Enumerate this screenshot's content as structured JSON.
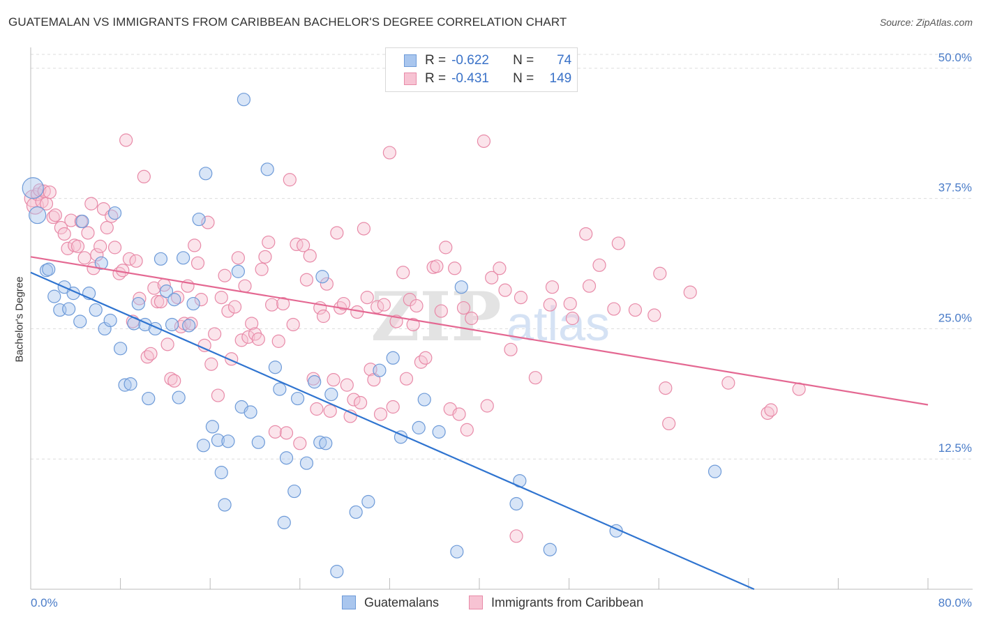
{
  "header": {
    "title": "GUATEMALAN VS IMMIGRANTS FROM CARIBBEAN BACHELOR'S DEGREE CORRELATION CHART",
    "source": "Source: ZipAtlas.com"
  },
  "legend": {
    "r_label": "R =",
    "n_label": "N =",
    "rows": [
      {
        "r": "-0.622",
        "n": "74"
      },
      {
        "r": "-0.431",
        "n": "149"
      }
    ]
  },
  "watermark": {
    "part1": "ZIP",
    "part2": "atlas"
  },
  "colors": {
    "blue_fill": "#a9c6ee",
    "blue_stroke": "#6d9ad8",
    "blue_line": "#2f74d0",
    "pink_fill": "#f7c3d3",
    "pink_stroke": "#e88aa8",
    "pink_line": "#e46892",
    "tick_text": "#4a7cc8"
  },
  "chart_data": {
    "type": "scatter",
    "title": "GUATEMALAN VS IMMIGRANTS FROM CARIBBEAN BACHELOR'S DEGREE CORRELATION CHART",
    "xlabel": "",
    "ylabel": "Bachelor's Degree",
    "xlim": [
      0,
      80
    ],
    "ylim": [
      0,
      52
    ],
    "x_tick_labels": [
      "0.0%",
      "80.0%"
    ],
    "y_ticks": [
      12.5,
      25.0,
      37.5,
      50.0
    ],
    "y_tick_labels": [
      "12.5%",
      "25.0%",
      "37.5%",
      "50.0%"
    ],
    "grid": "horizontal dashed",
    "legend_position": "top-center",
    "series": [
      {
        "name": "Guatemalans",
        "color": "#a9c6ee",
        "r": -0.622,
        "n": 74,
        "trend": {
          "x": [
            0,
            64.5
          ],
          "y": [
            30.4,
            0
          ]
        },
        "points": [
          [
            0.2,
            38.5
          ],
          [
            0.6,
            35.9
          ],
          [
            1.4,
            30.6
          ],
          [
            1.6,
            30.7
          ],
          [
            2.1,
            28.1
          ],
          [
            2.6,
            26.8
          ],
          [
            3.0,
            29.0
          ],
          [
            3.4,
            26.9
          ],
          [
            3.8,
            28.4
          ],
          [
            4.4,
            25.7
          ],
          [
            4.6,
            35.3
          ],
          [
            5.2,
            28.4
          ],
          [
            5.8,
            26.8
          ],
          [
            6.3,
            31.3
          ],
          [
            6.6,
            25.0
          ],
          [
            7.1,
            25.8
          ],
          [
            7.5,
            36.1
          ],
          [
            8.0,
            23.1
          ],
          [
            8.4,
            19.6
          ],
          [
            8.9,
            19.7
          ],
          [
            9.2,
            25.5
          ],
          [
            9.6,
            27.4
          ],
          [
            10.2,
            25.4
          ],
          [
            10.5,
            18.3
          ],
          [
            11.1,
            25.0
          ],
          [
            11.6,
            31.7
          ],
          [
            12.1,
            28.6
          ],
          [
            12.6,
            25.4
          ],
          [
            12.8,
            27.8
          ],
          [
            13.2,
            18.4
          ],
          [
            13.6,
            31.8
          ],
          [
            14.1,
            25.3
          ],
          [
            14.5,
            27.4
          ],
          [
            15.0,
            35.5
          ],
          [
            15.4,
            13.8
          ],
          [
            15.6,
            39.9
          ],
          [
            16.2,
            15.6
          ],
          [
            16.7,
            14.3
          ],
          [
            17.0,
            11.2
          ],
          [
            17.3,
            8.1
          ],
          [
            17.6,
            14.2
          ],
          [
            18.5,
            30.5
          ],
          [
            18.8,
            17.5
          ],
          [
            19.0,
            47.0
          ],
          [
            19.6,
            17.0
          ],
          [
            20.3,
            14.1
          ],
          [
            21.1,
            40.3
          ],
          [
            21.8,
            21.3
          ],
          [
            22.2,
            19.2
          ],
          [
            22.6,
            6.4
          ],
          [
            22.8,
            12.6
          ],
          [
            23.5,
            9.4
          ],
          [
            23.8,
            18.3
          ],
          [
            24.6,
            12.1
          ],
          [
            25.3,
            19.9
          ],
          [
            25.8,
            14.1
          ],
          [
            26.0,
            30.0
          ],
          [
            26.3,
            14.0
          ],
          [
            26.8,
            18.7
          ],
          [
            27.3,
            1.7
          ],
          [
            29.0,
            7.4
          ],
          [
            30.1,
            8.4
          ],
          [
            31.1,
            21.0
          ],
          [
            32.3,
            22.2
          ],
          [
            33.0,
            14.6
          ],
          [
            34.6,
            15.5
          ],
          [
            35.1,
            18.2
          ],
          [
            36.4,
            15.1
          ],
          [
            38.0,
            3.6
          ],
          [
            38.4,
            29.0
          ],
          [
            43.3,
            8.2
          ],
          [
            43.6,
            10.4
          ],
          [
            46.3,
            3.8
          ],
          [
            52.2,
            5.6
          ],
          [
            61.0,
            11.3
          ]
        ]
      },
      {
        "name": "Immigrants from Caribbean",
        "color": "#f7c3d3",
        "r": -0.431,
        "n": 149,
        "trend": {
          "x": [
            0,
            80
          ],
          "y": [
            31.9,
            17.7
          ]
        },
        "points": [
          [
            0.2,
            37.5
          ],
          [
            0.4,
            36.8
          ],
          [
            0.6,
            37.9
          ],
          [
            0.8,
            38.3
          ],
          [
            1.0,
            37.2
          ],
          [
            1.2,
            38.2
          ],
          [
            1.4,
            37.0
          ],
          [
            1.7,
            38.1
          ],
          [
            2.0,
            35.7
          ],
          [
            2.2,
            35.9
          ],
          [
            2.7,
            34.7
          ],
          [
            3.0,
            34.1
          ],
          [
            3.3,
            32.7
          ],
          [
            3.6,
            35.4
          ],
          [
            3.9,
            33.0
          ],
          [
            4.2,
            32.9
          ],
          [
            4.5,
            35.3
          ],
          [
            4.8,
            31.8
          ],
          [
            5.1,
            34.2
          ],
          [
            5.4,
            37.0
          ],
          [
            5.6,
            30.8
          ],
          [
            5.9,
            32.1
          ],
          [
            6.2,
            32.9
          ],
          [
            6.5,
            36.5
          ],
          [
            6.8,
            34.7
          ],
          [
            7.2,
            35.8
          ],
          [
            7.5,
            32.8
          ],
          [
            7.9,
            30.3
          ],
          [
            8.2,
            30.6
          ],
          [
            8.5,
            43.1
          ],
          [
            8.8,
            31.7
          ],
          [
            9.1,
            25.7
          ],
          [
            9.4,
            31.5
          ],
          [
            9.7,
            27.9
          ],
          [
            10.1,
            39.6
          ],
          [
            10.4,
            22.3
          ],
          [
            10.7,
            22.6
          ],
          [
            11.0,
            28.9
          ],
          [
            11.3,
            27.6
          ],
          [
            11.6,
            27.6
          ],
          [
            11.9,
            29.2
          ],
          [
            12.2,
            23.5
          ],
          [
            12.5,
            20.2
          ],
          [
            12.8,
            20.0
          ],
          [
            13.1,
            28.0
          ],
          [
            13.4,
            25.2
          ],
          [
            13.7,
            25.5
          ],
          [
            14.0,
            29.1
          ],
          [
            14.3,
            25.5
          ],
          [
            14.6,
            33.0
          ],
          [
            14.9,
            31.3
          ],
          [
            15.2,
            27.8
          ],
          [
            15.5,
            23.4
          ],
          [
            15.8,
            35.2
          ],
          [
            16.1,
            21.6
          ],
          [
            16.4,
            24.5
          ],
          [
            16.7,
            18.6
          ],
          [
            17.0,
            28.0
          ],
          [
            17.3,
            30.1
          ],
          [
            17.6,
            26.7
          ],
          [
            17.9,
            22.1
          ],
          [
            18.2,
            27.1
          ],
          [
            18.5,
            31.8
          ],
          [
            18.8,
            23.9
          ],
          [
            19.1,
            29.1
          ],
          [
            19.4,
            24.2
          ],
          [
            19.7,
            25.5
          ],
          [
            20.0,
            24.5
          ],
          [
            20.3,
            24.0
          ],
          [
            20.6,
            30.7
          ],
          [
            20.9,
            31.9
          ],
          [
            21.2,
            33.3
          ],
          [
            21.5,
            27.3
          ],
          [
            21.8,
            15.1
          ],
          [
            22.1,
            23.8
          ],
          [
            22.5,
            27.4
          ],
          [
            22.8,
            15.0
          ],
          [
            23.1,
            39.3
          ],
          [
            23.4,
            25.4
          ],
          [
            23.7,
            33.1
          ],
          [
            24.0,
            14.0
          ],
          [
            24.3,
            33.0
          ],
          [
            24.6,
            29.7
          ],
          [
            24.9,
            32.0
          ],
          [
            25.2,
            20.2
          ],
          [
            25.5,
            17.3
          ],
          [
            25.8,
            27.0
          ],
          [
            26.1,
            26.2
          ],
          [
            26.4,
            29.3
          ],
          [
            26.7,
            17.1
          ],
          [
            27.0,
            20.1
          ],
          [
            27.3,
            34.2
          ],
          [
            27.6,
            27.0
          ],
          [
            27.9,
            27.4
          ],
          [
            28.2,
            19.6
          ],
          [
            28.5,
            16.6
          ],
          [
            28.8,
            18.2
          ],
          [
            29.1,
            26.6
          ],
          [
            29.4,
            17.9
          ],
          [
            29.7,
            34.6
          ],
          [
            30.0,
            28.0
          ],
          [
            30.3,
            21.1
          ],
          [
            30.6,
            20.1
          ],
          [
            30.9,
            27.1
          ],
          [
            31.2,
            16.8
          ],
          [
            31.5,
            27.3
          ],
          [
            32.0,
            41.9
          ],
          [
            32.3,
            17.5
          ],
          [
            32.6,
            25.7
          ],
          [
            33.2,
            30.4
          ],
          [
            33.5,
            20.2
          ],
          [
            33.8,
            27.8
          ],
          [
            34.1,
            25.4
          ],
          [
            34.4,
            27.2
          ],
          [
            34.8,
            21.8
          ],
          [
            35.2,
            22.2
          ],
          [
            35.9,
            30.9
          ],
          [
            36.2,
            31.0
          ],
          [
            36.6,
            26.7
          ],
          [
            37.0,
            32.8
          ],
          [
            37.4,
            17.3
          ],
          [
            37.8,
            30.8
          ],
          [
            38.2,
            16.8
          ],
          [
            38.6,
            27.0
          ],
          [
            38.9,
            15.3
          ],
          [
            39.3,
            26.0
          ],
          [
            40.4,
            43.0
          ],
          [
            40.7,
            17.6
          ],
          [
            41.1,
            29.9
          ],
          [
            41.8,
            30.8
          ],
          [
            42.3,
            28.7
          ],
          [
            42.8,
            23.0
          ],
          [
            43.3,
            5.1
          ],
          [
            43.7,
            28.0
          ],
          [
            45.0,
            20.3
          ],
          [
            46.3,
            27.3
          ],
          [
            46.5,
            29.0
          ],
          [
            48.1,
            27.4
          ],
          [
            48.3,
            26.0
          ],
          [
            49.5,
            34.1
          ],
          [
            49.8,
            29.1
          ],
          [
            50.7,
            31.1
          ],
          [
            52.0,
            26.9
          ],
          [
            52.4,
            33.2
          ],
          [
            53.9,
            26.8
          ],
          [
            55.6,
            26.3
          ],
          [
            56.1,
            30.3
          ],
          [
            56.6,
            19.3
          ],
          [
            56.9,
            15.9
          ],
          [
            58.8,
            28.5
          ],
          [
            62.2,
            19.8
          ],
          [
            65.7,
            16.9
          ],
          [
            66.0,
            17.2
          ],
          [
            68.5,
            19.2
          ]
        ]
      }
    ]
  },
  "bottom_legend": [
    {
      "label": "Guatemalans"
    },
    {
      "label": "Immigrants from Caribbean"
    }
  ]
}
